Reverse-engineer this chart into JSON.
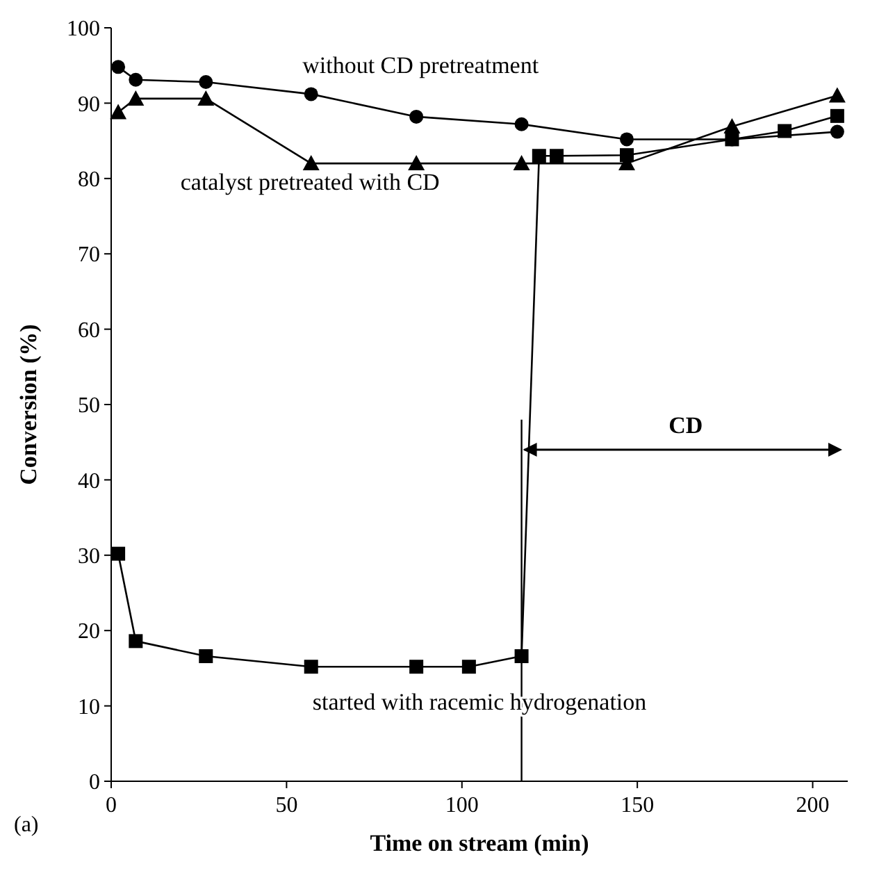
{
  "chart_data": {
    "type": "line",
    "xlabel": "Time on stream (min)",
    "ylabel": "Conversion (%)",
    "series": [
      {
        "name": "without CD pretreatment",
        "color": "#000000",
        "marker": "circle",
        "x": [
          2,
          7,
          27,
          57,
          87,
          117,
          147,
          177,
          207
        ],
        "values": [
          94.8,
          93.1,
          92.8,
          91.2,
          88.2,
          87.2,
          85.2,
          85.2,
          86.2
        ]
      },
      {
        "name": "catalyst pretreated with CD",
        "color": "#000000",
        "marker": "triangle",
        "x": [
          2,
          7,
          27,
          57,
          87,
          117,
          147,
          177,
          207
        ],
        "values": [
          88.8,
          90.6,
          90.6,
          82,
          82,
          82,
          82,
          86.9,
          91
        ]
      },
      {
        "name": "started with racemic hydrogenation",
        "color": "#000000",
        "marker": "square",
        "x": [
          2,
          7,
          27,
          57,
          87,
          102,
          117,
          122,
          127,
          147,
          177,
          192,
          207
        ],
        "values": [
          30.2,
          18.6,
          16.6,
          15.2,
          15.2,
          15.2,
          16.6,
          83,
          83,
          83.1,
          85.2,
          86.3,
          88.3
        ]
      }
    ],
    "xlim": [
      0,
      210
    ],
    "xticks": [
      0,
      50,
      100,
      150,
      200
    ],
    "ylim": [
      0,
      100
    ],
    "yticks": [
      0,
      10,
      20,
      30,
      40,
      50,
      60,
      70,
      80,
      90,
      100
    ],
    "grid": false,
    "line_style": "solid",
    "ref_lines": [
      {
        "axis": "x",
        "value": 117
      }
    ],
    "annotations": [
      "CD",
      "(a)"
    ]
  }
}
